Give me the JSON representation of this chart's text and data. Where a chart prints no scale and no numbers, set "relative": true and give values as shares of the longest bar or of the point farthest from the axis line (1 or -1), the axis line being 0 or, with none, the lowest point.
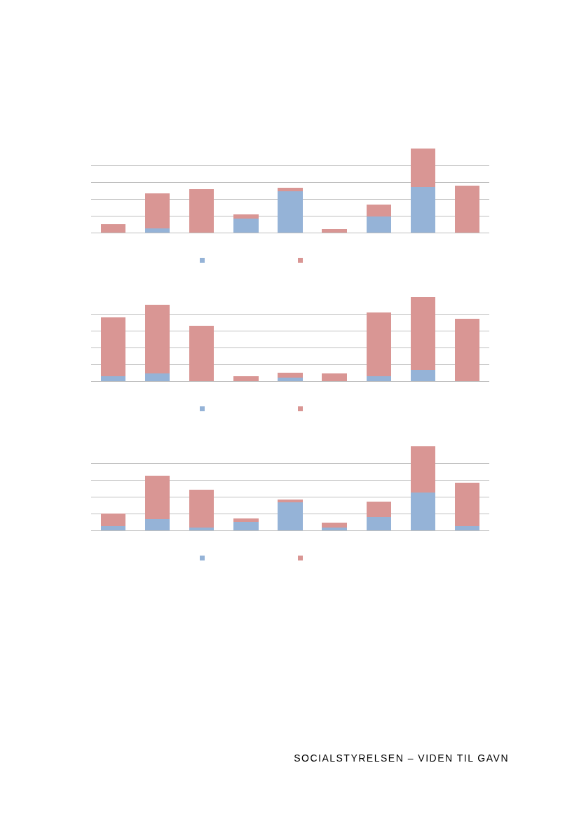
{
  "chart_data": [
    {
      "type": "bar",
      "stacked": true,
      "relative": true,
      "grid": true,
      "categories": [
        null,
        null,
        null,
        null,
        null,
        null,
        null,
        null,
        null
      ],
      "series": [
        {
          "color": "#95b3d7",
          "values": [
            0,
            0.05,
            0,
            0.17,
            0.49,
            0,
            0.19,
            0.54,
            0
          ]
        },
        {
          "color": "#d99694",
          "values": [
            0.1,
            0.42,
            0.52,
            0.05,
            0.04,
            0.04,
            0.14,
            0.46,
            0.56
          ]
        }
      ]
    },
    {
      "type": "bar",
      "stacked": true,
      "relative": true,
      "grid": true,
      "categories": [
        null,
        null,
        null,
        null,
        null,
        null,
        null,
        null,
        null
      ],
      "series": [
        {
          "color": "#95b3d7",
          "values": [
            0.06,
            0.09,
            0,
            0,
            0.04,
            0,
            0.06,
            0.13,
            0
          ]
        },
        {
          "color": "#d99694",
          "values": [
            0.7,
            0.82,
            0.66,
            0.06,
            0.06,
            0.09,
            0.76,
            0.87,
            0.74
          ]
        }
      ]
    },
    {
      "type": "bar",
      "stacked": true,
      "relative": true,
      "grid": true,
      "categories": [
        null,
        null,
        null,
        null,
        null,
        null,
        null,
        null,
        null
      ],
      "series": [
        {
          "color": "#95b3d7",
          "values": [
            0.05,
            0.13,
            0.03,
            0.1,
            0.33,
            0.03,
            0.16,
            0.45,
            0.05
          ]
        },
        {
          "color": "#d99694",
          "values": [
            0.15,
            0.52,
            0.45,
            0.04,
            0.04,
            0.06,
            0.18,
            0.55,
            0.52
          ]
        }
      ],
      "annotations": [
        "SOCIALSTYRELSEN – VIDEN TIL GAVN"
      ]
    }
  ]
}
